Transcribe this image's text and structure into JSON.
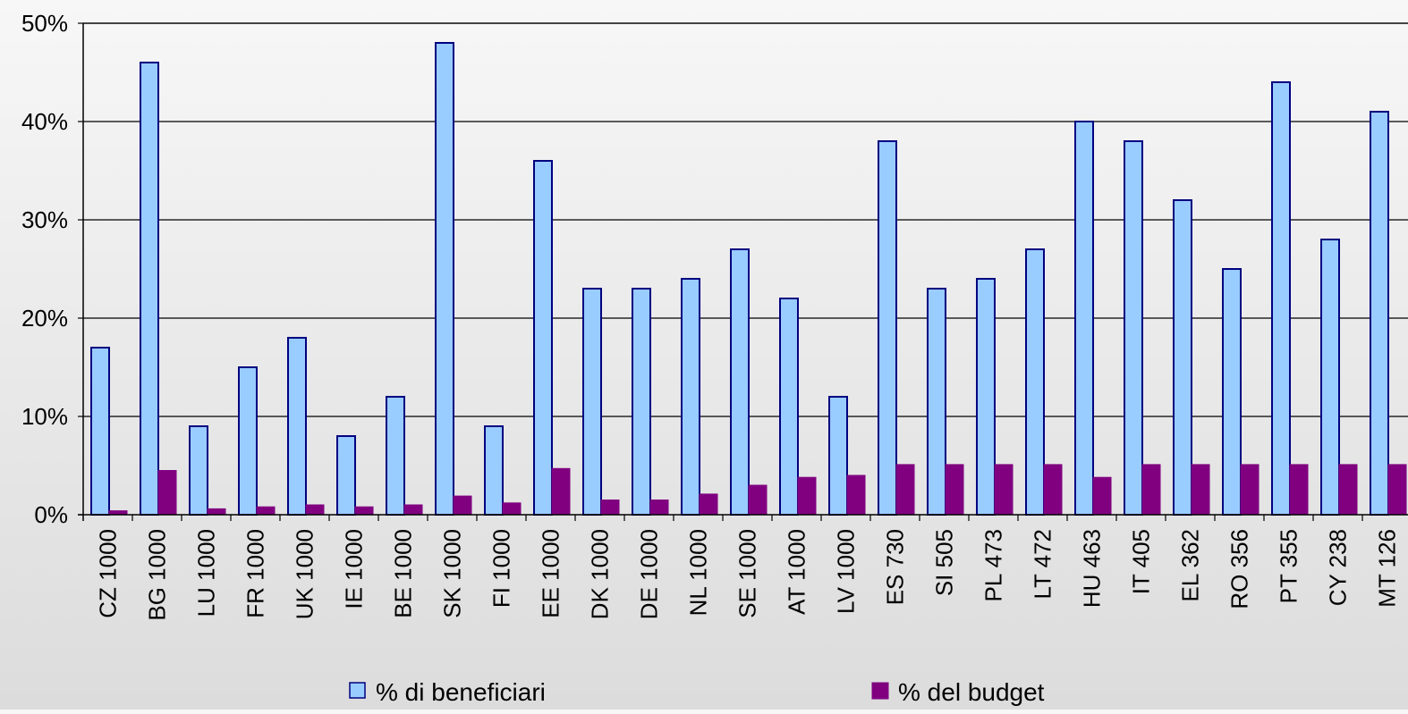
{
  "chart_data": {
    "type": "bar",
    "title": "",
    "xlabel": "",
    "ylabel": "",
    "ylim": [
      0,
      50
    ],
    "y_ticks": [
      "0%",
      "10%",
      "20%",
      "30%",
      "40%",
      "50%"
    ],
    "grid": true,
    "legend_position": "bottom",
    "categories": [
      "CZ 1000",
      "BG 1000",
      "LU 1000",
      "FR 1000",
      "UK 1000",
      "IE 1000",
      "BE 1000",
      "SK 1000",
      "FI 1000",
      "EE 1000",
      "DK 1000",
      "DE 1000",
      "NL 1000",
      "SE 1000",
      "AT 1000",
      "LV 1000",
      "ES 730",
      "SI 505",
      "PL 473",
      "LT 472",
      "HU 463",
      "IT 405",
      "EL 362",
      "RO 356",
      "PT 355",
      "CY 238",
      "MT 126"
    ],
    "series": [
      {
        "name": "% di beneficiari",
        "color": "#99ccff",
        "stroke": "#000080",
        "values": [
          17,
          46,
          9,
          15,
          18,
          8,
          12,
          48,
          9,
          36,
          23,
          23,
          24,
          27,
          22,
          12,
          38,
          23,
          24,
          27,
          40,
          38,
          32,
          25,
          44,
          28,
          41
        ]
      },
      {
        "name": "% del budget",
        "color": "#800080",
        "stroke": "#800080",
        "values": [
          0.4,
          4.5,
          0.6,
          0.8,
          1.0,
          0.8,
          1.0,
          1.9,
          1.2,
          4.7,
          1.5,
          1.5,
          2.1,
          3.0,
          3.8,
          4.0,
          5.1,
          5.1,
          5.1,
          5.1,
          3.8,
          5.1,
          5.1,
          5.1,
          5.1,
          5.1,
          5.1
        ]
      }
    ]
  }
}
